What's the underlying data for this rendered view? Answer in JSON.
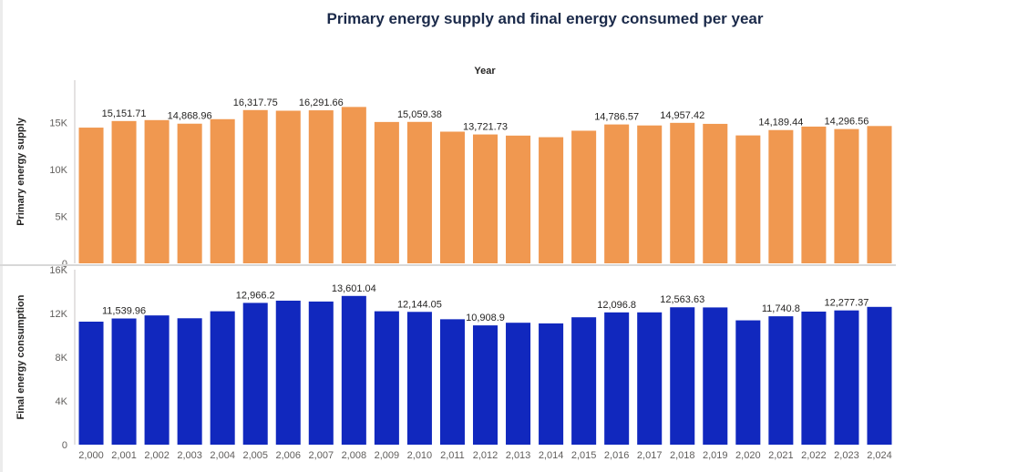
{
  "chart_data": {
    "type": "bar",
    "title": "Primary energy supply and final energy consumed per year",
    "xlabel": "Year",
    "categories": [
      "2,000",
      "2,001",
      "2,002",
      "2,003",
      "2,004",
      "2,005",
      "2,006",
      "2,007",
      "2,008",
      "2,009",
      "2,010",
      "2,011",
      "2,012",
      "2,013",
      "2,014",
      "2,015",
      "2,016",
      "2,017",
      "2,018",
      "2,019",
      "2,020",
      "2,021",
      "2,022",
      "2,023",
      "2,024"
    ],
    "panels": [
      {
        "ylabel": "Primary energy supply",
        "color": "#f09850",
        "ylim": [
          0,
          19500
        ],
        "yticks": [
          0,
          5000,
          10000,
          15000
        ],
        "ytick_labels": [
          "0",
          "5K",
          "10K",
          "15K"
        ],
        "values": [
          14450,
          15151.71,
          15250,
          14868.96,
          15350,
          16317.75,
          16250,
          16291.66,
          16650,
          15050,
          15059.38,
          14020,
          13721.73,
          13600,
          13430,
          14120,
          14786.57,
          14680,
          14957.42,
          14850,
          13620,
          14189.44,
          14560,
          14296.56,
          14620
        ],
        "labels": [
          "",
          "15,151.71",
          "",
          "14,868.96",
          "",
          "16,317.75",
          "",
          "16,291.66",
          "",
          "",
          "15,059.38",
          "",
          "13,721.73",
          "",
          "",
          "",
          "14,786.57",
          "",
          "14,957.42",
          "",
          "",
          "14,189.44",
          "",
          "14,296.56",
          ""
        ]
      },
      {
        "ylabel": "Final energy consumption",
        "color": "#1128be",
        "ylim": [
          0,
          16000
        ],
        "yticks": [
          0,
          4000,
          8000,
          12000,
          16000
        ],
        "ytick_labels": [
          "0",
          "4K",
          "8K",
          "12K",
          "16K"
        ],
        "values": [
          11250,
          11539.96,
          11820,
          11560,
          12200,
          12966.2,
          13170,
          13090,
          13601.04,
          12200,
          12144.05,
          11470,
          10908.9,
          11150,
          11090,
          11650,
          12096.8,
          12100,
          12563.63,
          12550,
          11370,
          11740.8,
          12170,
          12277.37,
          12600
        ],
        "labels": [
          "",
          "11,539.96",
          "",
          "",
          "",
          "12,966.2",
          "",
          "",
          "13,601.04",
          "",
          "12,144.05",
          "",
          "10,908.9",
          "",
          "",
          "",
          "12,096.8",
          "",
          "12,563.63",
          "",
          "",
          "11,740.8",
          "",
          "12,277.37",
          ""
        ]
      }
    ]
  }
}
